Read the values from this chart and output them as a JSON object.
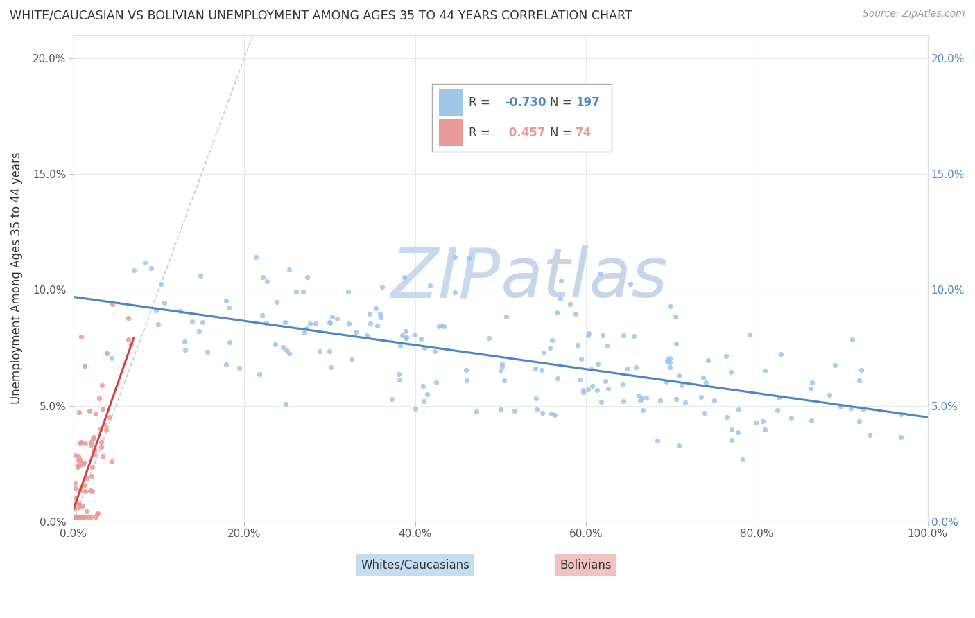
{
  "title": "WHITE/CAUCASIAN VS BOLIVIAN UNEMPLOYMENT AMONG AGES 35 TO 44 YEARS CORRELATION CHART",
  "source": "Source: ZipAtlas.com",
  "ylabel": "Unemployment Among Ages 35 to 44 years",
  "xlim": [
    0.0,
    1.0
  ],
  "ylim": [
    0.0,
    0.21
  ],
  "blue_R": -0.73,
  "blue_N": 197,
  "pink_R": 0.457,
  "pink_N": 74,
  "blue_color": "#9fc5e8",
  "pink_color": "#ea9999",
  "blue_line_color": "#4a86c8",
  "pink_line_color": "#cc4444",
  "watermark_zip_color": "#c8d8ee",
  "watermark_atlas_color": "#c8d4e8",
  "background_color": "#ffffff",
  "grid_color": "#e8e8e8",
  "yticks": [
    0.0,
    0.05,
    0.1,
    0.15,
    0.2
  ],
  "ytick_labels": [
    "0.0%",
    "5.0%",
    "10.0%",
    "15.0%",
    "20.0%"
  ],
  "xtick_labels": [
    "0.0%",
    "20.0%",
    "40.0%",
    "60.0%",
    "80.0%",
    "100.0%"
  ],
  "xticks": [
    0.0,
    0.2,
    0.4,
    0.6,
    0.8,
    1.0
  ],
  "blue_intercept": 0.097,
  "blue_slope": -0.052,
  "pink_intercept": 0.005,
  "pink_slope": 1.05,
  "ref_line_end": 0.21,
  "blue_scatter_seed": 42,
  "pink_scatter_seed": 123
}
